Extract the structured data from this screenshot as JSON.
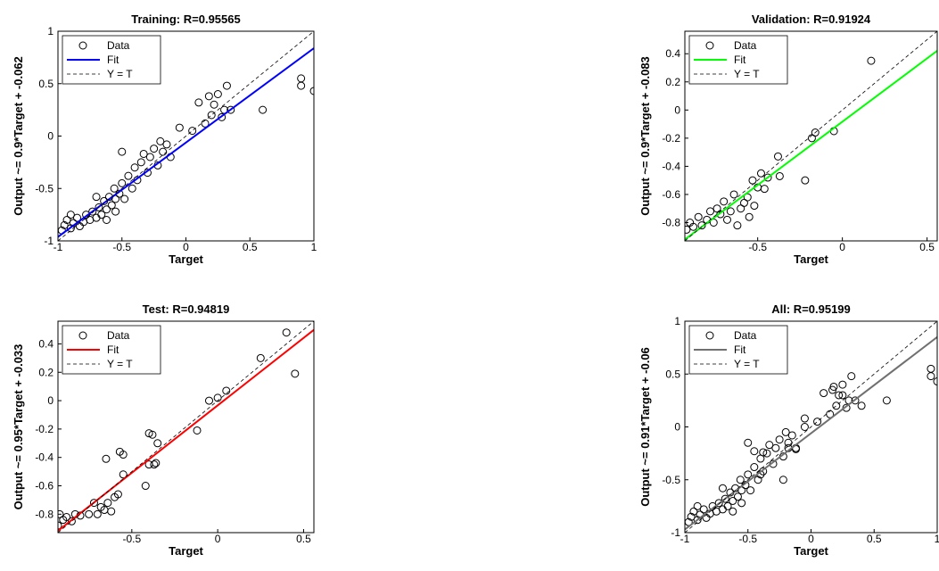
{
  "chart_data": [
    {
      "type": "scatter",
      "title": "Training: R=0.95565",
      "x_label": "Target",
      "y_label": "Output ~= 0.9*Target + -0.062",
      "xlim": [
        -1,
        1
      ],
      "ylim": [
        -1,
        1
      ],
      "xticks": [
        -1,
        -0.5,
        0,
        0.5,
        1
      ],
      "yticks": [
        -1,
        -0.5,
        0,
        0.5,
        1
      ],
      "series": [
        {
          "name": "Data",
          "color": "#000000",
          "marker": "circle",
          "x": [
            -0.95,
            -0.93,
            -0.9,
            -0.88,
            -0.85,
            -0.83,
            -0.8,
            -0.78,
            -0.75,
            -0.73,
            -0.7,
            -0.68,
            -0.66,
            -0.64,
            -0.62,
            -0.6,
            -0.58,
            -0.56,
            -0.55,
            -0.52,
            -0.5,
            -0.48,
            -0.5,
            -0.45,
            -0.42,
            -0.4,
            -0.38,
            -0.35,
            -0.33,
            -0.3,
            -0.28,
            -0.25,
            -0.22,
            -0.2,
            -0.18,
            -0.15,
            -0.12,
            -0.05,
            0.05,
            0.1,
            0.15,
            0.18,
            0.2,
            0.22,
            0.25,
            0.28,
            0.3,
            0.32,
            0.35,
            0.6,
            0.9,
            0.9,
            1,
            -0.97,
            -0.9,
            -0.7,
            -0.62,
            -0.55
          ],
          "values": [
            -0.85,
            -0.8,
            -0.88,
            -0.83,
            -0.78,
            -0.86,
            -0.82,
            -0.75,
            -0.8,
            -0.72,
            -0.78,
            -0.68,
            -0.75,
            -0.62,
            -0.7,
            -0.58,
            -0.66,
            -0.5,
            -0.72,
            -0.55,
            -0.45,
            -0.6,
            -0.15,
            -0.38,
            -0.5,
            -0.3,
            -0.42,
            -0.25,
            -0.17,
            -0.35,
            -0.2,
            -0.12,
            -0.28,
            -0.05,
            -0.15,
            -0.08,
            -0.2,
            0.08,
            0.05,
            0.32,
            0.12,
            0.38,
            0.2,
            0.3,
            0.4,
            0.18,
            0.25,
            0.48,
            0.25,
            0.25,
            0.55,
            0.48,
            0.43,
            -0.9,
            -0.75,
            -0.58,
            -0.8,
            -0.6
          ]
        },
        {
          "name": "Fit",
          "color": "#0000ff",
          "style": "solid",
          "x": [
            -1,
            1
          ],
          "values": [
            -0.962,
            0.838
          ]
        },
        {
          "name": "Y = T",
          "color": "#000000",
          "style": "dashed",
          "x": [
            -1,
            1
          ],
          "values": [
            -1,
            1
          ]
        }
      ]
    },
    {
      "type": "scatter",
      "title": "Validation: R=0.91924",
      "x_label": "Target",
      "y_label": "Output ~= 0.9*Target + -0.083",
      "xlim": [
        -0.93,
        0.56
      ],
      "ylim": [
        -0.93,
        0.56
      ],
      "xticks": [
        -0.5,
        0,
        0.5
      ],
      "yticks": [
        -0.8,
        -0.6,
        -0.4,
        -0.2,
        0,
        0.2,
        0.4
      ],
      "series": [
        {
          "name": "Data",
          "color": "#000000",
          "marker": "circle",
          "x": [
            -0.92,
            -0.9,
            -0.88,
            -0.85,
            -0.83,
            -0.8,
            -0.78,
            -0.76,
            -0.74,
            -0.72,
            -0.7,
            -0.68,
            -0.66,
            -0.64,
            -0.62,
            -0.6,
            -0.58,
            -0.56,
            -0.55,
            -0.53,
            -0.52,
            -0.5,
            -0.48,
            -0.46,
            -0.44,
            -0.38,
            -0.37,
            -0.22,
            -0.18,
            -0.16,
            -0.05,
            0.17
          ],
          "values": [
            -0.85,
            -0.8,
            -0.83,
            -0.76,
            -0.82,
            -0.78,
            -0.72,
            -0.8,
            -0.7,
            -0.74,
            -0.65,
            -0.78,
            -0.72,
            -0.6,
            -0.82,
            -0.7,
            -0.66,
            -0.62,
            -0.76,
            -0.5,
            -0.68,
            -0.55,
            -0.45,
            -0.56,
            -0.48,
            -0.33,
            -0.47,
            -0.5,
            -0.2,
            -0.16,
            -0.15,
            0.35
          ]
        },
        {
          "name": "Fit",
          "color": "#00ff00",
          "style": "solid",
          "x": [
            -0.93,
            0.56
          ],
          "values": [
            -0.92,
            0.421
          ]
        },
        {
          "name": "Y = T",
          "color": "#000000",
          "style": "dashed",
          "x": [
            -0.93,
            0.56
          ],
          "values": [
            -0.93,
            0.56
          ]
        }
      ]
    },
    {
      "type": "scatter",
      "title": "Test: R=0.94819",
      "x_label": "Target",
      "y_label": "Output ~= 0.95*Target + -0.033",
      "xlim": [
        -0.93,
        0.56
      ],
      "ylim": [
        -0.93,
        0.56
      ],
      "xticks": [
        -0.5,
        0,
        0.5
      ],
      "yticks": [
        -0.8,
        -0.6,
        -0.4,
        -0.2,
        0,
        0.2,
        0.4
      ],
      "series": [
        {
          "name": "Data",
          "color": "#000000",
          "marker": "circle",
          "x": [
            -0.93,
            -0.92,
            -0.9,
            -0.88,
            -0.85,
            -0.83,
            -0.8,
            -0.75,
            -0.72,
            -0.7,
            -0.68,
            -0.66,
            -0.64,
            -0.62,
            -0.6,
            -0.58,
            -0.55,
            -0.57,
            -0.55,
            -0.65,
            -0.4,
            -0.38,
            -0.37,
            -0.36,
            -0.35,
            -0.42,
            -0.4,
            -0.12,
            -0.05,
            0,
            0.05,
            0.25,
            0.4,
            0.45
          ],
          "values": [
            -0.88,
            -0.8,
            -0.84,
            -0.82,
            -0.85,
            -0.8,
            -0.81,
            -0.8,
            -0.72,
            -0.8,
            -0.75,
            -0.77,
            -0.72,
            -0.78,
            -0.68,
            -0.66,
            -0.52,
            -0.36,
            -0.38,
            -0.41,
            -0.23,
            -0.24,
            -0.45,
            -0.44,
            -0.3,
            -0.6,
            -0.45,
            -0.21,
            0,
            0.02,
            0.07,
            0.3,
            0.48,
            0.19
          ]
        },
        {
          "name": "Fit",
          "color": "#ff0000",
          "style": "solid",
          "x": [
            -0.93,
            0.56
          ],
          "values": [
            -0.917,
            0.499
          ]
        },
        {
          "name": "Y = T",
          "color": "#000000",
          "style": "dashed",
          "x": [
            -0.93,
            0.56
          ],
          "values": [
            -0.93,
            0.56
          ]
        }
      ]
    },
    {
      "type": "scatter",
      "title": "All: R=0.95199",
      "x_label": "Target",
      "y_label": "Output ~= 0.91*Target + -0.06",
      "xlim": [
        -1,
        1
      ],
      "ylim": [
        -1,
        1
      ],
      "xticks": [
        -1,
        -0.5,
        0,
        0.5,
        1
      ],
      "yticks": [
        -1,
        -0.5,
        0,
        0.5,
        1
      ],
      "series": [
        {
          "name": "Data",
          "color": "#000000",
          "marker": "circle",
          "x": [
            -0.95,
            -0.93,
            -0.9,
            -0.88,
            -0.85,
            -0.83,
            -0.8,
            -0.78,
            -0.75,
            -0.73,
            -0.7,
            -0.68,
            -0.66,
            -0.64,
            -0.62,
            -0.6,
            -0.58,
            -0.56,
            -0.55,
            -0.52,
            -0.5,
            -0.48,
            -0.5,
            -0.45,
            -0.42,
            -0.4,
            -0.38,
            -0.35,
            -0.33,
            -0.3,
            -0.28,
            -0.25,
            -0.22,
            -0.2,
            -0.18,
            -0.15,
            -0.12,
            -0.05,
            0.05,
            0.1,
            0.15,
            0.18,
            0.2,
            0.22,
            0.25,
            0.28,
            0.3,
            0.32,
            0.35,
            0.4,
            0.6,
            0.95,
            0.95,
            1,
            -0.97,
            -0.9,
            -0.7,
            -0.62,
            -0.55,
            -0.45,
            -0.4,
            -0.38,
            -0.22,
            -0.18,
            -0.12,
            -0.05,
            0.17,
            0.25
          ],
          "values": [
            -0.85,
            -0.8,
            -0.88,
            -0.83,
            -0.78,
            -0.86,
            -0.82,
            -0.75,
            -0.8,
            -0.72,
            -0.78,
            -0.68,
            -0.75,
            -0.62,
            -0.7,
            -0.58,
            -0.66,
            -0.5,
            -0.72,
            -0.55,
            -0.45,
            -0.6,
            -0.15,
            -0.38,
            -0.5,
            -0.3,
            -0.42,
            -0.25,
            -0.17,
            -0.35,
            -0.2,
            -0.12,
            -0.28,
            -0.05,
            -0.15,
            -0.08,
            -0.2,
            0.08,
            0.05,
            0.32,
            0.12,
            0.38,
            0.2,
            0.3,
            0.4,
            0.18,
            0.25,
            0.48,
            0.25,
            0.2,
            0.25,
            0.55,
            0.48,
            0.43,
            -0.9,
            -0.75,
            -0.58,
            -0.8,
            -0.6,
            -0.23,
            -0.45,
            -0.24,
            -0.5,
            -0.2,
            -0.21,
            0,
            0.35,
            0.3
          ]
        },
        {
          "name": "Fit",
          "color": "#707070",
          "style": "solid",
          "x": [
            -1,
            1
          ],
          "values": [
            -0.97,
            0.85
          ]
        },
        {
          "name": "Y = T",
          "color": "#000000",
          "style": "dashed",
          "x": [
            -1,
            1
          ],
          "values": [
            -1,
            1
          ]
        }
      ]
    }
  ]
}
